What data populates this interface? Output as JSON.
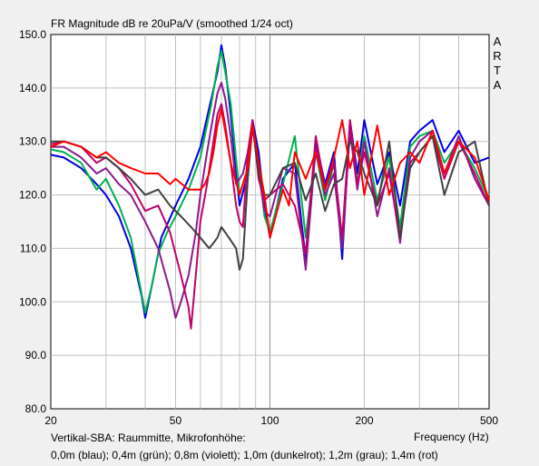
{
  "chart_data": {
    "type": "line",
    "title": "FR Magnitude dB re 20uPa/V (smoothed 1/24 oct)",
    "watermark": "ARTA",
    "xlabel": "Frequency (Hz)",
    "xscale": "log",
    "xlim": [
      20,
      500
    ],
    "ylim": [
      80,
      150
    ],
    "x_ticks": [
      20,
      50,
      100,
      200,
      500
    ],
    "y_ticks": [
      "80.0",
      "90.0",
      "100.0",
      "110.0",
      "120.0",
      "130.0",
      "140.0",
      "150.0"
    ],
    "grid": true,
    "caption_line1": "Vertikal-SBA: Raummitte, Mikrofonhöhe:",
    "caption_line2": "0,0m (blau); 0,4m (grün); 0,8m (violett); 1,0m (dunkelrot); 1,2m (grau); 1,4m (rot)",
    "series": [
      {
        "color": "#0000e0",
        "x": [
          20,
          22,
          25,
          28,
          30,
          33,
          36,
          39,
          40,
          42,
          45,
          50,
          55,
          60,
          65,
          68,
          70,
          72,
          75,
          80,
          85,
          88,
          92,
          96,
          100,
          110,
          120,
          130,
          140,
          150,
          160,
          170,
          180,
          190,
          200,
          220,
          240,
          260,
          280,
          300,
          330,
          360,
          400,
          450,
          500
        ],
        "y": [
          127.5,
          127.0,
          125.0,
          122.0,
          120.0,
          116.0,
          110.0,
          101.0,
          97.0,
          103.0,
          112.0,
          118.0,
          123.0,
          129.0,
          138.0,
          143.0,
          148.0,
          144.0,
          135.0,
          118.0,
          124.0,
          134.0,
          128.0,
          118.0,
          112.0,
          123.0,
          126.0,
          108.0,
          130.0,
          122.0,
          128.0,
          108.0,
          134.0,
          124.0,
          134.0,
          122.0,
          128.0,
          118.0,
          130.0,
          132.0,
          134.0,
          128.0,
          132.0,
          126.0,
          127.0
        ]
      },
      {
        "color": "#00b050",
        "x": [
          20,
          22,
          25,
          28,
          30,
          33,
          36,
          40,
          42,
          44,
          47,
          50,
          55,
          60,
          65,
          68,
          70,
          72,
          75,
          80,
          85,
          88,
          92,
          96,
          100,
          110,
          120,
          130,
          140,
          150,
          160,
          170,
          180,
          190,
          200,
          220,
          240,
          260,
          280,
          300,
          330,
          360,
          400,
          450,
          500
        ],
        "y": [
          128.5,
          128.0,
          126.0,
          121.0,
          123.0,
          118.0,
          112.0,
          98.0,
          103.0,
          109.0,
          113.0,
          116.0,
          121.0,
          127.0,
          137.0,
          144.0,
          147.0,
          143.0,
          137.0,
          120.0,
          125.0,
          133.0,
          126.0,
          116.0,
          113.0,
          122.0,
          131.0,
          112.0,
          128.0,
          119.0,
          126.0,
          110.0,
          133.0,
          122.0,
          131.0,
          119.0,
          127.0,
          114.0,
          129.0,
          131.0,
          132.0,
          126.0,
          130.0,
          125.0,
          119.0
        ]
      },
      {
        "color": "#8b1a8b",
        "x": [
          20,
          22,
          25,
          28,
          30,
          33,
          36,
          40,
          44,
          48,
          50,
          52,
          55,
          58,
          60,
          63,
          66,
          68,
          70,
          72,
          75,
          78,
          82,
          85,
          88,
          92,
          96,
          100,
          110,
          120,
          130,
          140,
          150,
          160,
          170,
          180,
          190,
          200,
          220,
          240,
          260,
          280,
          300,
          330,
          360,
          400,
          450,
          500
        ],
        "y": [
          129.0,
          129.0,
          127.0,
          124.0,
          125.0,
          122.0,
          120.0,
          115.0,
          110.0,
          102.0,
          97.0,
          100.0,
          105.0,
          113.0,
          120.0,
          128.0,
          135.0,
          139.0,
          141.0,
          138.0,
          131.0,
          122.0,
          124.0,
          128.0,
          133.0,
          124.0,
          117.0,
          116.0,
          125.0,
          124.0,
          106.0,
          129.0,
          120.0,
          124.0,
          110.0,
          132.0,
          121.0,
          130.0,
          116.0,
          125.0,
          111.0,
          127.0,
          130.0,
          132.0,
          124.0,
          131.0,
          123.0,
          118.0
        ]
      },
      {
        "color": "#c0006a",
        "x": [
          20,
          22,
          25,
          28,
          30,
          33,
          36,
          40,
          44,
          48,
          52,
          55,
          56,
          58,
          60,
          63,
          66,
          68,
          70,
          72,
          75,
          78,
          80,
          82,
          85,
          88,
          92,
          96,
          100,
          110,
          120,
          130,
          140,
          150,
          160,
          170,
          180,
          190,
          200,
          220,
          240,
          260,
          280,
          300,
          330,
          360,
          400,
          450,
          500
        ],
        "y": [
          129.5,
          130.0,
          129.0,
          126.0,
          127.0,
          125.0,
          122.0,
          117.0,
          118.0,
          113.0,
          105.0,
          99.0,
          95.0,
          105.0,
          115.0,
          122.0,
          130.0,
          135.0,
          137.0,
          133.0,
          126.0,
          118.0,
          115.0,
          114.0,
          128.0,
          134.0,
          123.0,
          119.0,
          120.0,
          122.0,
          118.0,
          109.0,
          131.0,
          121.0,
          126.0,
          112.0,
          134.0,
          122.0,
          128.0,
          118.0,
          124.0,
          112.0,
          126.0,
          128.0,
          131.0,
          123.0,
          130.0,
          124.0,
          118.0
        ]
      },
      {
        "color": "#404040",
        "x": [
          20,
          22,
          25,
          28,
          30,
          33,
          36,
          40,
          44,
          48,
          52,
          56,
          60,
          64,
          66,
          68,
          70,
          74,
          78,
          80,
          82,
          85,
          88,
          92,
          96,
          100,
          110,
          120,
          130,
          140,
          150,
          160,
          170,
          180,
          190,
          200,
          220,
          240,
          260,
          280,
          300,
          330,
          360,
          400,
          450,
          500
        ],
        "y": [
          130.0,
          130.0,
          129.0,
          127.0,
          127.0,
          125.0,
          123.0,
          120.0,
          121.0,
          118.0,
          116.0,
          114.0,
          112.0,
          110.0,
          111.0,
          112.0,
          114.0,
          112.0,
          110.0,
          106.0,
          108.0,
          123.0,
          133.0,
          124.0,
          120.0,
          120.0,
          125.0,
          126.0,
          119.0,
          124.0,
          117.0,
          122.0,
          123.0,
          130.0,
          128.0,
          124.0,
          118.0,
          130.0,
          112.0,
          125.0,
          128.0,
          131.0,
          120.0,
          128.0,
          130.0,
          118.0
        ]
      },
      {
        "color": "#ff0000",
        "x": [
          20,
          22,
          25,
          28,
          30,
          33,
          36,
          40,
          44,
          48,
          50,
          55,
          60,
          62,
          64,
          66,
          68,
          70,
          72,
          75,
          80,
          85,
          88,
          92,
          96,
          100,
          110,
          115,
          120,
          130,
          140,
          150,
          160,
          170,
          180,
          190,
          200,
          220,
          240,
          260,
          280,
          300,
          330,
          360,
          400,
          450,
          500
        ],
        "y": [
          129.0,
          130.0,
          129.0,
          127.0,
          128.0,
          126.0,
          125.0,
          124.0,
          124.0,
          122.0,
          123.0,
          121.0,
          121.0,
          122.0,
          124.0,
          128.0,
          133.0,
          136.0,
          132.0,
          126.0,
          120.0,
          125.0,
          133.0,
          126.0,
          120.0,
          112.0,
          121.0,
          118.0,
          128.0,
          123.0,
          128.0,
          121.0,
          127.0,
          134.0,
          125.0,
          130.0,
          120.0,
          133.0,
          120.0,
          126.0,
          128.0,
          126.0,
          132.0,
          124.0,
          130.0,
          127.0,
          119.0
        ]
      }
    ]
  }
}
